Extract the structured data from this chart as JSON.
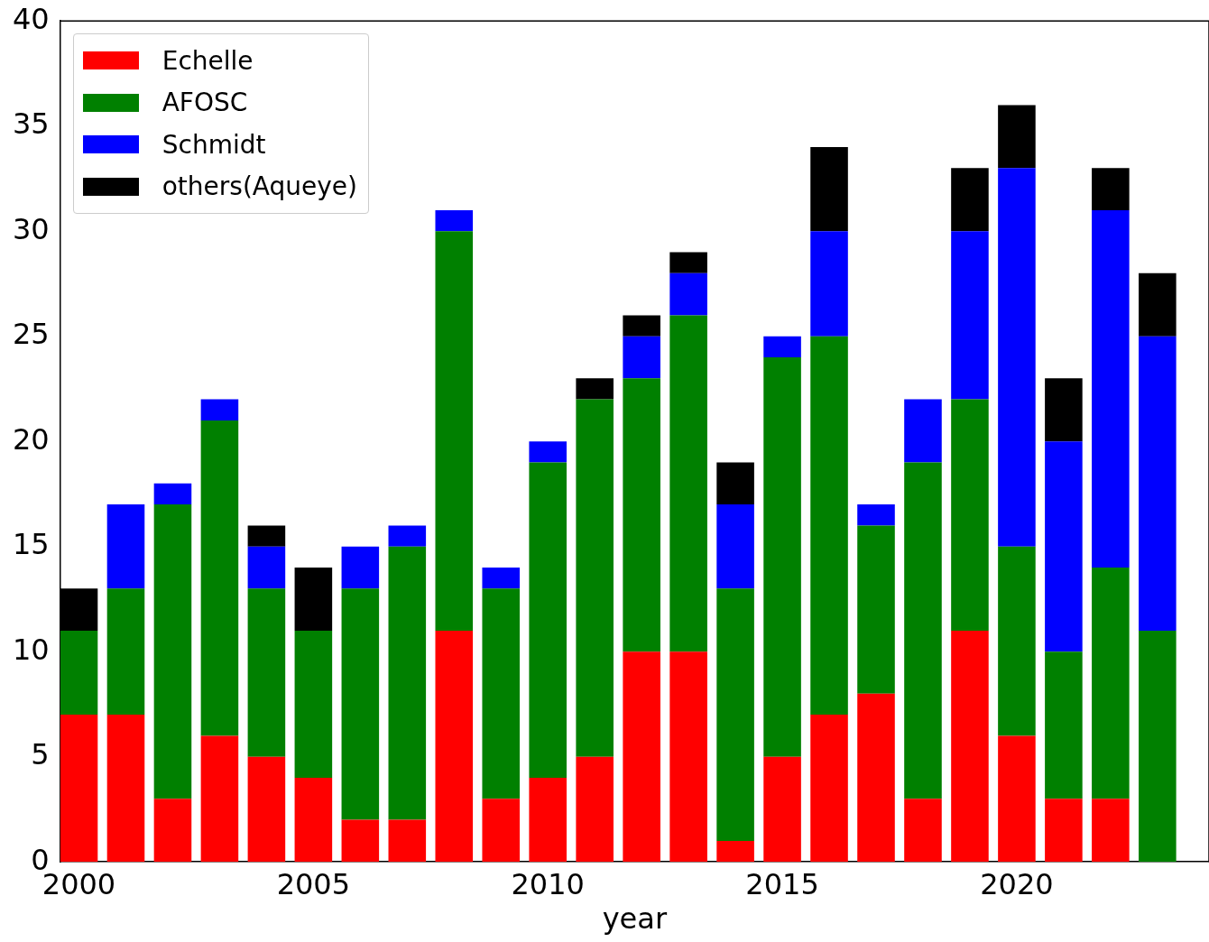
{
  "chart_data": {
    "type": "bar",
    "stacked": true,
    "xlabel": "year",
    "x": [
      2000,
      2001,
      2002,
      2003,
      2004,
      2005,
      2006,
      2007,
      2008,
      2009,
      2010,
      2011,
      2012,
      2013,
      2014,
      2015,
      2016,
      2017,
      2018,
      2019,
      2020,
      2021,
      2022,
      2023
    ],
    "xlim": [
      1999.6,
      2024.1
    ],
    "xticks": [
      2000,
      2005,
      2010,
      2015,
      2020
    ],
    "ylim": [
      0,
      40
    ],
    "yticks": [
      0,
      5,
      10,
      15,
      20,
      25,
      30,
      35,
      40
    ],
    "grid": false,
    "legend": "top left",
    "series": [
      {
        "name": "Echelle",
        "color": "#ff0000",
        "values": [
          7,
          7,
          3,
          6,
          5,
          4,
          2,
          2,
          11,
          3,
          4,
          5,
          10,
          10,
          1,
          5,
          7,
          8,
          3,
          11,
          6,
          3,
          3,
          0
        ]
      },
      {
        "name": "AFOSC",
        "color": "#008000",
        "values": [
          4,
          6,
          14,
          15,
          8,
          7,
          11,
          13,
          19,
          10,
          15,
          17,
          13,
          16,
          12,
          19,
          18,
          8,
          16,
          11,
          9,
          7,
          11,
          11
        ]
      },
      {
        "name": "Schmidt",
        "color": "#0000ff",
        "values": [
          0,
          4,
          1,
          1,
          2,
          0,
          2,
          1,
          1,
          1,
          1,
          0,
          2,
          2,
          4,
          1,
          5,
          1,
          3,
          8,
          18,
          10,
          17,
          14
        ]
      },
      {
        "name": "others(Aqueye)",
        "color": "#000000",
        "values": [
          2,
          0,
          0,
          0,
          1,
          3,
          0,
          0,
          0,
          0,
          0,
          1,
          1,
          1,
          2,
          0,
          4,
          0,
          0,
          3,
          3,
          3,
          2,
          3
        ]
      }
    ]
  }
}
